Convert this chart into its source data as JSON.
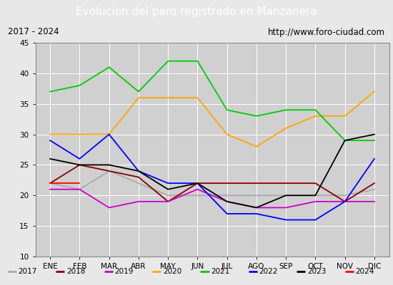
{
  "title": "Evolucion del paro registrado en Manzanera",
  "subtitle_left": "2017 - 2024",
  "subtitle_right": "http://www.foro-ciudad.com",
  "x_labels": [
    "ENE",
    "FEB",
    "MAR",
    "ABR",
    "MAY",
    "JUN",
    "JUL",
    "AGO",
    "SEP",
    "OCT",
    "NOV",
    "DIC"
  ],
  "ylim": [
    10,
    45
  ],
  "yticks": [
    10,
    15,
    20,
    25,
    30,
    35,
    40,
    45
  ],
  "series": {
    "2017": {
      "color": "#aaaaaa",
      "values": [
        22,
        21,
        24,
        22,
        20,
        20,
        20,
        20,
        20,
        20,
        20,
        21
      ]
    },
    "2018": {
      "color": "#8b0000",
      "values": [
        22,
        25,
        24,
        23,
        19,
        22,
        22,
        22,
        22,
        22,
        19,
        22
      ]
    },
    "2019": {
      "color": "#cc00cc",
      "values": [
        21,
        21,
        18,
        19,
        19,
        21,
        19,
        18,
        18,
        19,
        19,
        19
      ]
    },
    "2020": {
      "color": "#ffa500",
      "values": [
        30,
        30,
        30,
        36,
        36,
        36,
        30,
        28,
        31,
        33,
        33,
        37
      ]
    },
    "2021": {
      "color": "#00cc00",
      "values": [
        37,
        38,
        41,
        37,
        42,
        42,
        34,
        33,
        34,
        34,
        29,
        29
      ]
    },
    "2022": {
      "color": "#0000ff",
      "values": [
        29,
        26,
        30,
        24,
        22,
        22,
        17,
        17,
        16,
        16,
        19,
        26
      ]
    },
    "2023": {
      "color": "#000000",
      "values": [
        26,
        25,
        25,
        24,
        21,
        22,
        19,
        18,
        20,
        20,
        29,
        30
      ]
    },
    "2024": {
      "color": "#ff0000",
      "values": [
        22,
        22,
        null,
        null,
        null,
        null,
        null,
        null,
        null,
        null,
        null,
        null
      ]
    }
  },
  "background_color": "#e8e8e8",
  "plot_background": "#d0d0d0",
  "title_bg": "#4472c4",
  "title_color": "#ffffff",
  "subtitle_bg": "#f5f5f5",
  "legend_bg": "#f5f5f5"
}
